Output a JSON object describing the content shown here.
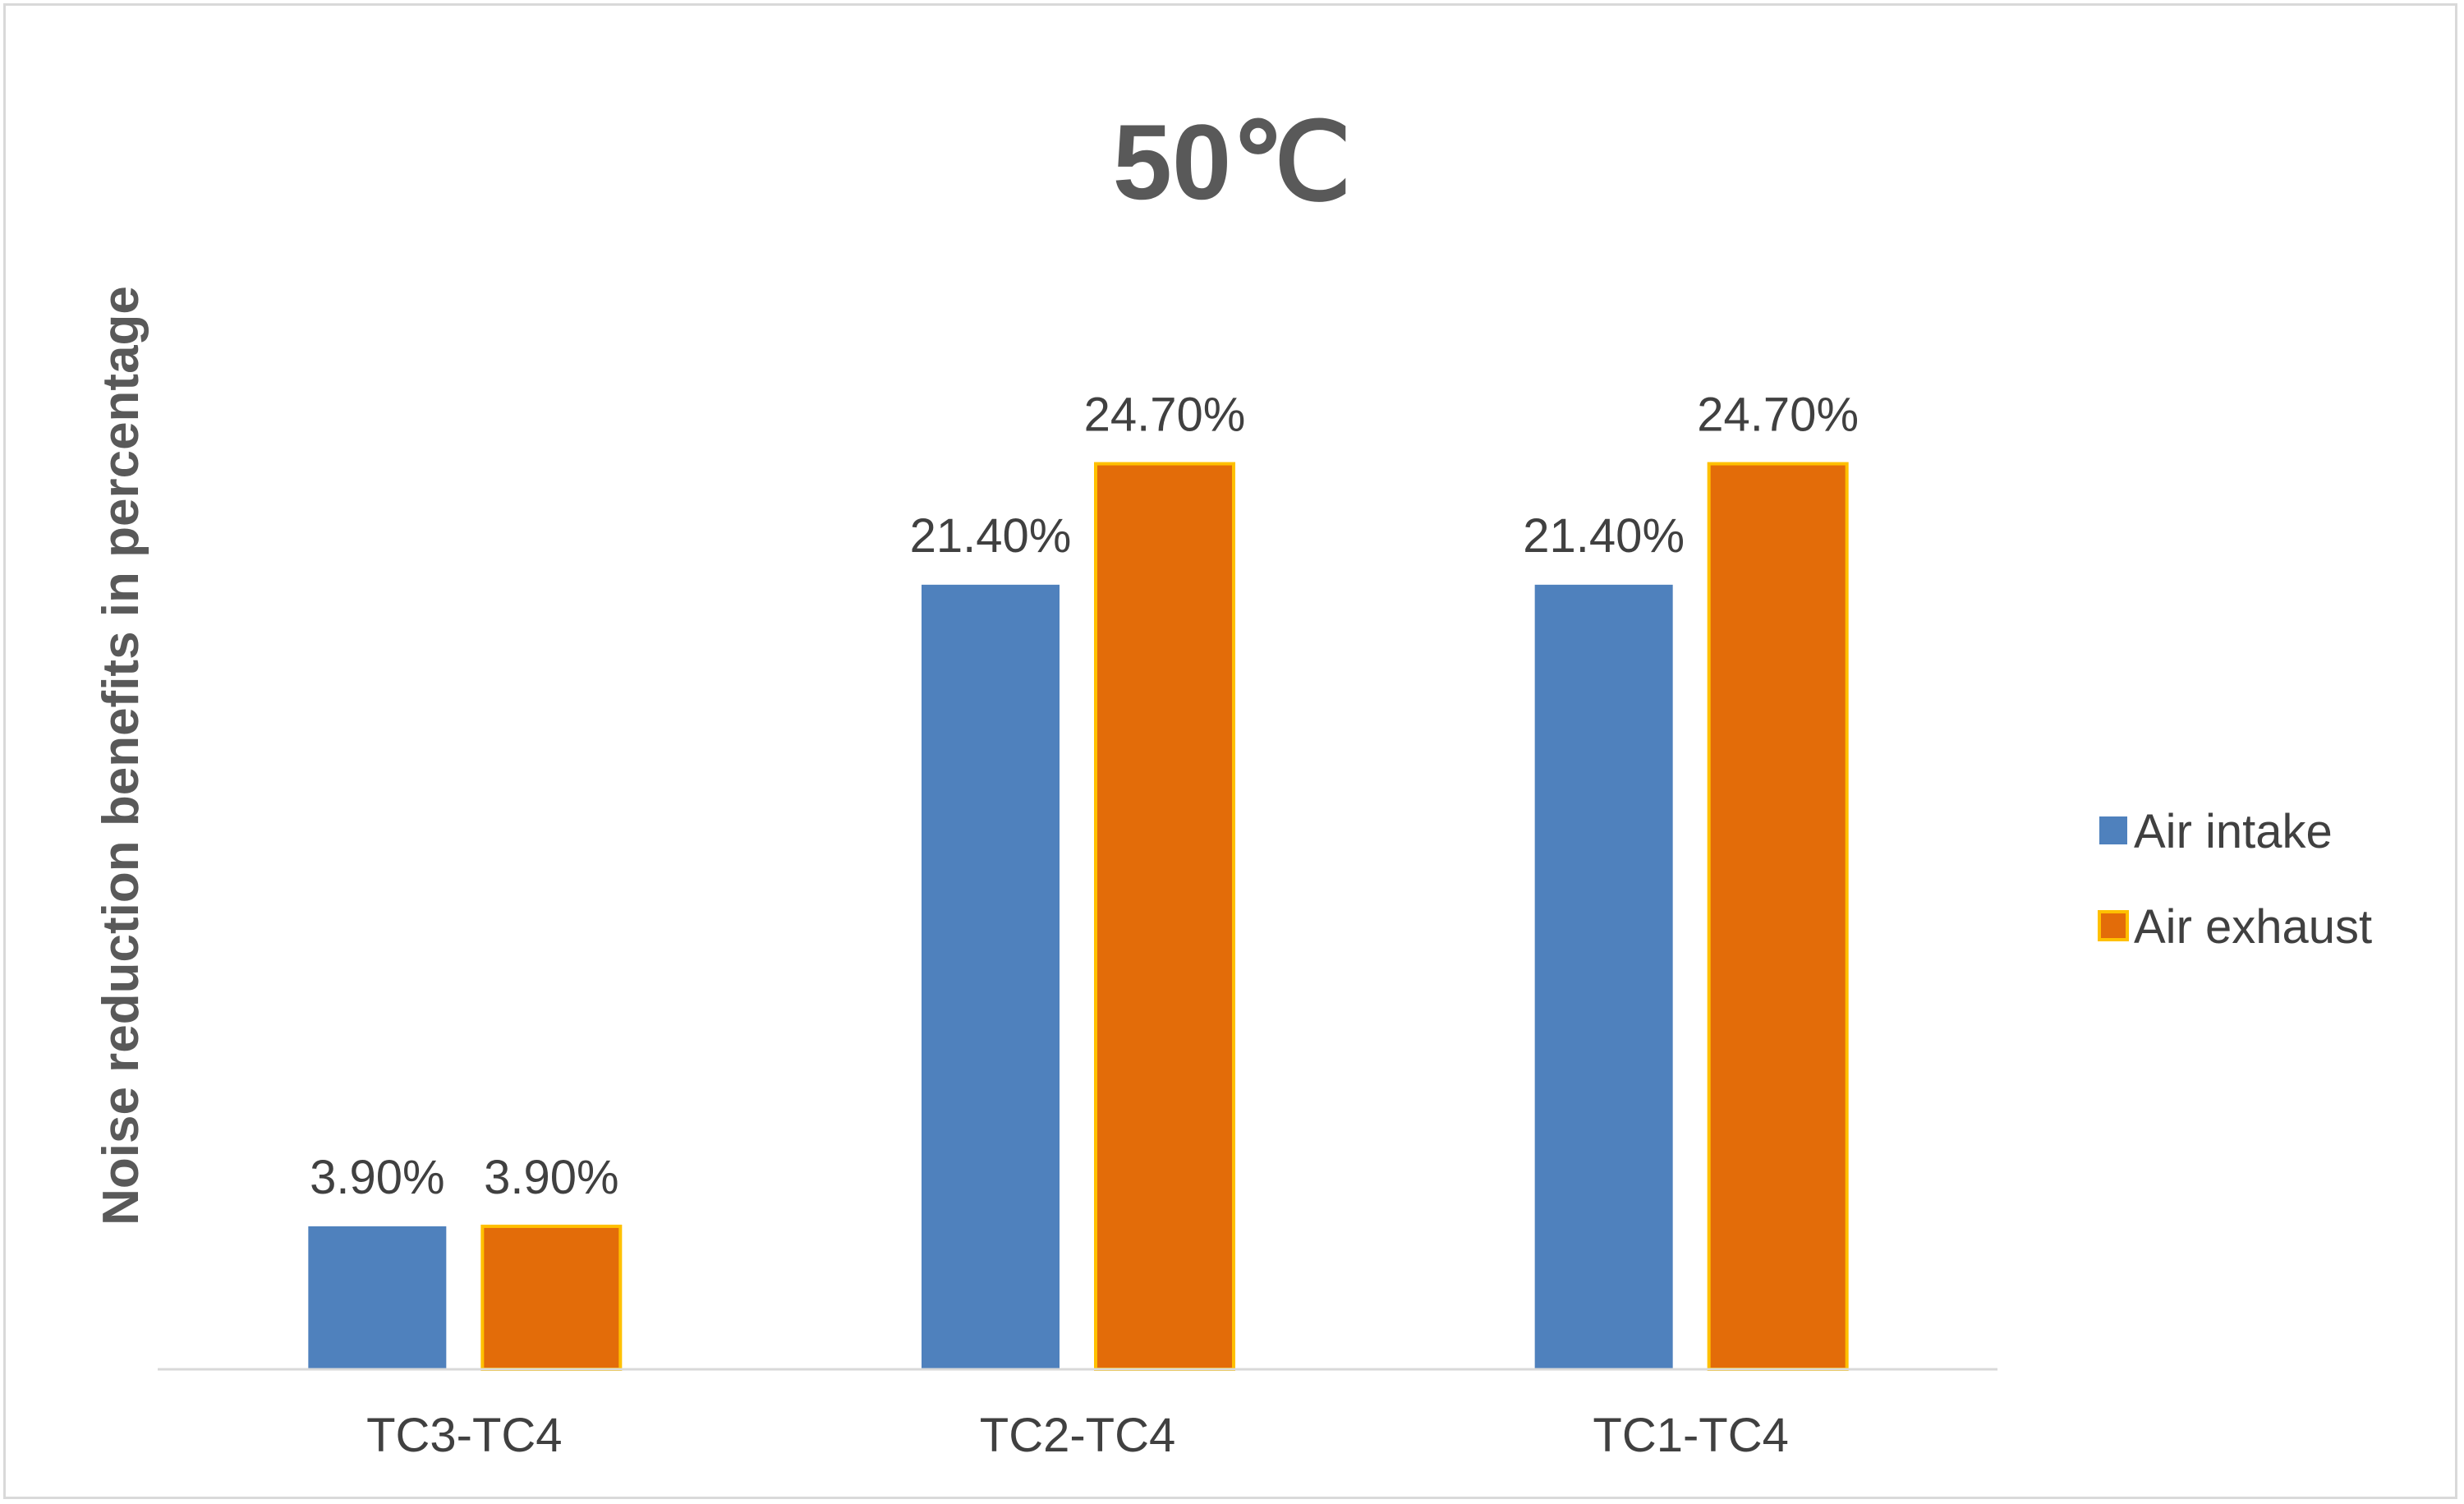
{
  "chart_data": {
    "type": "bar",
    "title": "50℃",
    "xlabel": "",
    "ylabel": "Noise reduction benefits in percentage",
    "categories": [
      "TC3-TC4",
      "TC2-TC4",
      "TC1-TC4"
    ],
    "series": [
      {
        "name": "Air intake",
        "values": [
          3.9,
          21.4,
          21.4
        ],
        "labels": [
          "3.90%",
          "21.40%",
          "21.40%"
        ],
        "color": "#4f81bd"
      },
      {
        "name": "Air exhaust",
        "values": [
          3.9,
          24.7,
          24.7
        ],
        "labels": [
          "3.90%",
          "24.70%",
          "24.70%"
        ],
        "color": "#e36c09",
        "border_color": "#ffc000"
      }
    ],
    "ylim": [
      0,
      30
    ],
    "grid": false,
    "legend": "right"
  }
}
